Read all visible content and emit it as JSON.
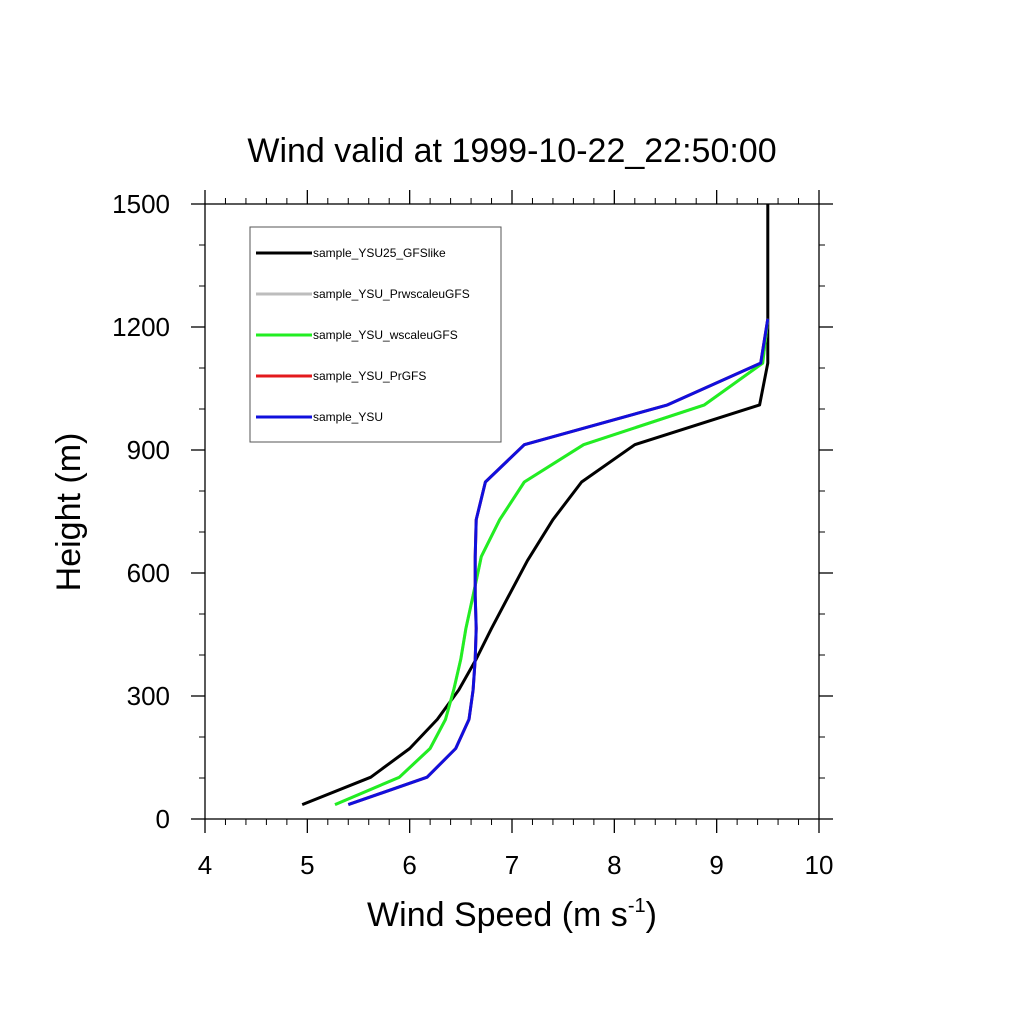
{
  "chart_data": {
    "type": "line",
    "title": "Wind valid at 1999-10-22_22:50:00",
    "xlabel_main": "Wind Speed (m s",
    "xlabel_sup": "-1",
    "xlabel_close": ")",
    "ylabel": "Height (m)",
    "xlim": [
      4,
      10
    ],
    "ylim": [
      0,
      1500
    ],
    "xticks": [
      4,
      5,
      6,
      7,
      8,
      9,
      10
    ],
    "yticks": [
      0,
      300,
      600,
      900,
      1200,
      1500
    ],
    "grid": false,
    "legend_position": "top-left",
    "series": [
      {
        "name": "sample_YSU25_GFSlike",
        "color": "#000000",
        "points": [
          [
            4.95,
            35
          ],
          [
            5.62,
            102
          ],
          [
            6.0,
            172
          ],
          [
            6.27,
            243
          ],
          [
            6.48,
            315
          ],
          [
            6.65,
            390
          ],
          [
            6.8,
            465
          ],
          [
            6.97,
            545
          ],
          [
            7.15,
            630
          ],
          [
            7.4,
            730
          ],
          [
            7.68,
            822
          ],
          [
            8.2,
            913
          ],
          [
            9.42,
            1010
          ],
          [
            9.5,
            1112
          ],
          [
            9.5,
            1220
          ],
          [
            9.5,
            1500
          ]
        ]
      },
      {
        "name": "sample_YSU_PrwscaleuGFS",
        "color": "#bdbdbd",
        "points": [
          [
            5.27,
            35
          ],
          [
            5.9,
            102
          ],
          [
            6.2,
            172
          ],
          [
            6.35,
            243
          ],
          [
            6.43,
            315
          ],
          [
            6.5,
            390
          ],
          [
            6.55,
            465
          ],
          [
            6.62,
            545
          ],
          [
            6.7,
            640
          ],
          [
            6.88,
            730
          ],
          [
            7.12,
            822
          ],
          [
            7.7,
            913
          ],
          [
            8.88,
            1010
          ],
          [
            9.45,
            1112
          ],
          [
            9.5,
            1220
          ]
        ]
      },
      {
        "name": "sample_YSU_wscaleuGFS",
        "color": "#22ee22",
        "points": [
          [
            5.27,
            35
          ],
          [
            5.9,
            102
          ],
          [
            6.2,
            172
          ],
          [
            6.35,
            243
          ],
          [
            6.43,
            315
          ],
          [
            6.5,
            390
          ],
          [
            6.55,
            465
          ],
          [
            6.62,
            545
          ],
          [
            6.7,
            640
          ],
          [
            6.88,
            730
          ],
          [
            7.12,
            822
          ],
          [
            7.7,
            913
          ],
          [
            8.88,
            1010
          ],
          [
            9.45,
            1112
          ],
          [
            9.5,
            1220
          ]
        ]
      },
      {
        "name": "sample_YSU_PrGFS",
        "color": "#e31a1c",
        "points": [
          [
            5.4,
            35
          ],
          [
            6.17,
            102
          ],
          [
            6.45,
            172
          ],
          [
            6.58,
            243
          ],
          [
            6.62,
            315
          ],
          [
            6.64,
            390
          ],
          [
            6.65,
            465
          ],
          [
            6.64,
            545
          ],
          [
            6.64,
            640
          ],
          [
            6.65,
            730
          ],
          [
            6.74,
            822
          ],
          [
            7.12,
            913
          ],
          [
            8.52,
            1010
          ],
          [
            9.43,
            1112
          ],
          [
            9.5,
            1220
          ]
        ]
      },
      {
        "name": "sample_YSU",
        "color": "#1010dd",
        "points": [
          [
            5.4,
            35
          ],
          [
            6.17,
            102
          ],
          [
            6.45,
            172
          ],
          [
            6.58,
            243
          ],
          [
            6.62,
            315
          ],
          [
            6.64,
            390
          ],
          [
            6.65,
            465
          ],
          [
            6.64,
            545
          ],
          [
            6.64,
            640
          ],
          [
            6.65,
            730
          ],
          [
            6.74,
            822
          ],
          [
            7.12,
            913
          ],
          [
            8.52,
            1010
          ],
          [
            9.43,
            1112
          ],
          [
            9.5,
            1220
          ]
        ]
      }
    ]
  }
}
